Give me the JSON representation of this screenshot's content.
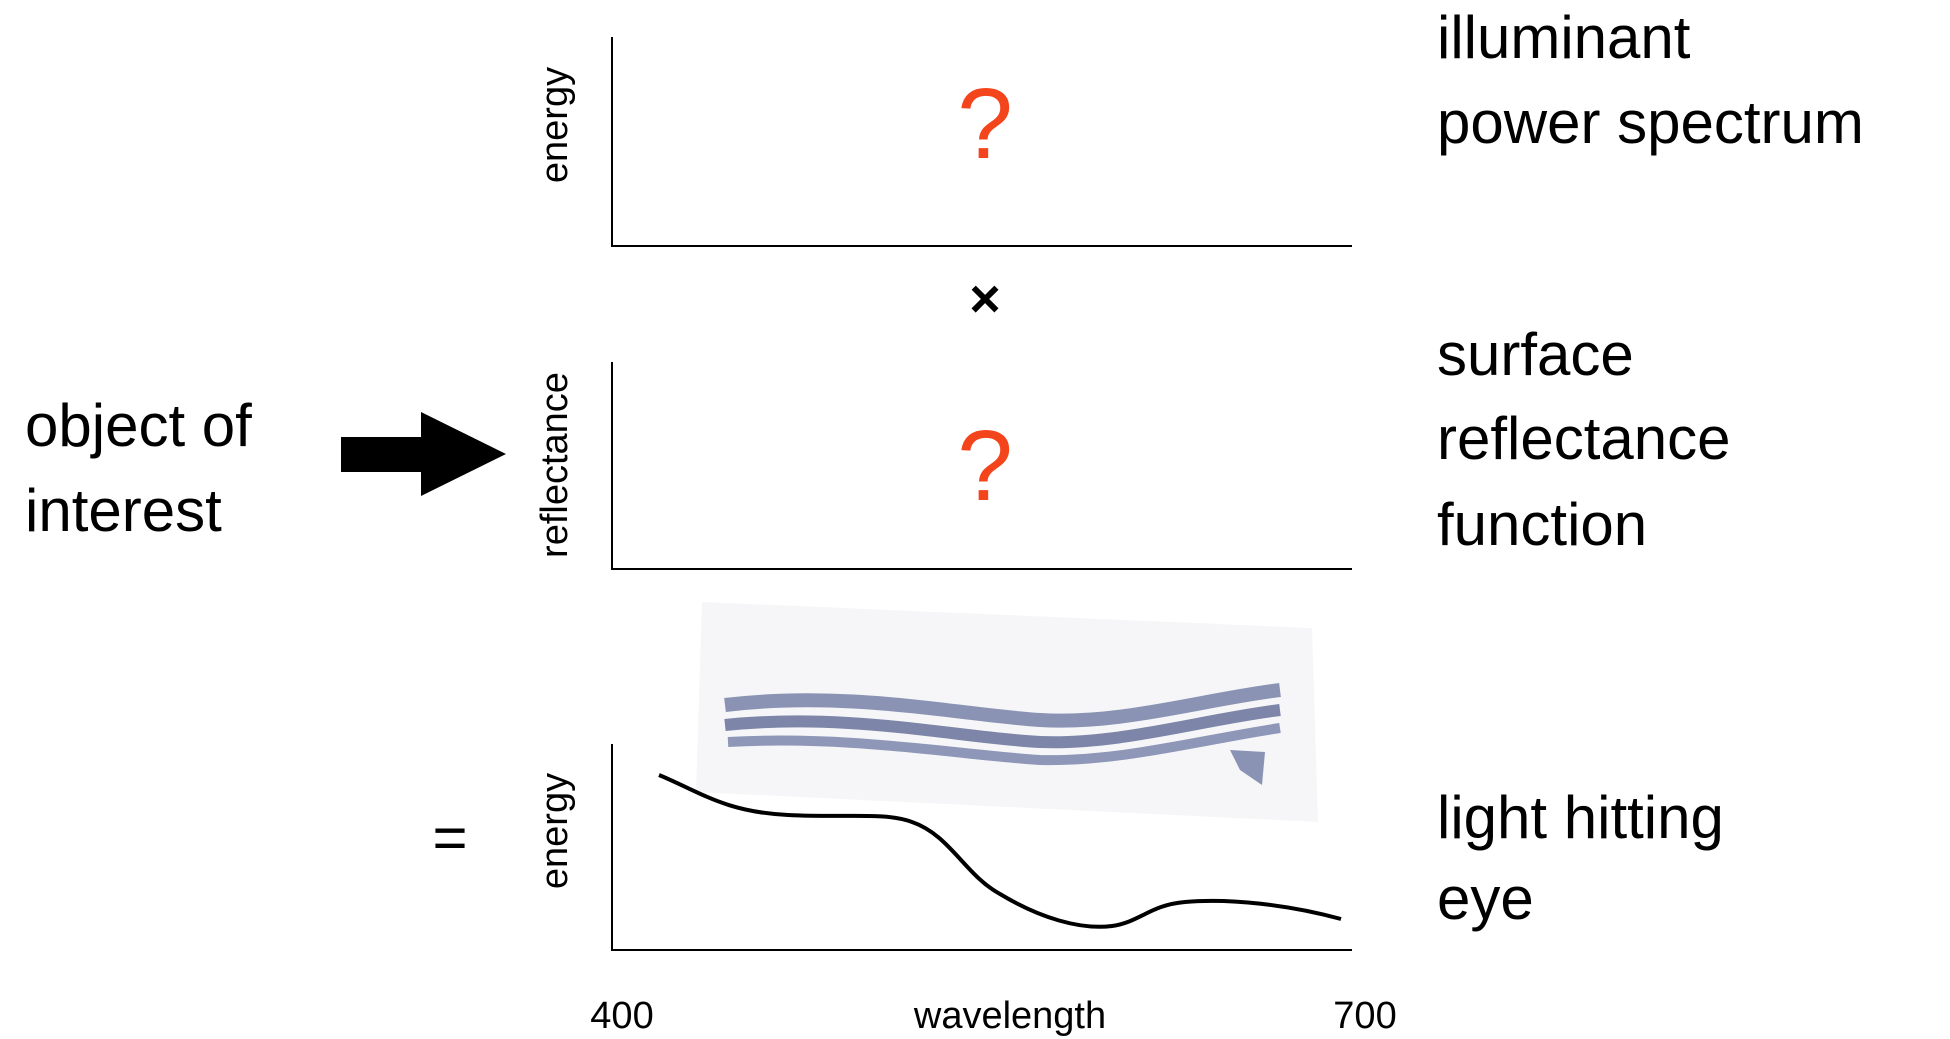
{
  "panels": [
    {
      "y_label": "energy",
      "mark": "?",
      "description": [
        "illuminant",
        "power spectrum"
      ]
    },
    {
      "y_label": "reflectance",
      "mark": "?",
      "description": [
        "surface",
        "reflectance",
        "function"
      ]
    },
    {
      "y_label": "energy",
      "description": [
        "light hitting",
        "eye"
      ]
    }
  ],
  "operators": {
    "multiply": "×",
    "equals": "="
  },
  "object_label": [
    "object of",
    "interest"
  ],
  "x_axis": {
    "start": "400",
    "label": "wavelength",
    "end": "700"
  }
}
